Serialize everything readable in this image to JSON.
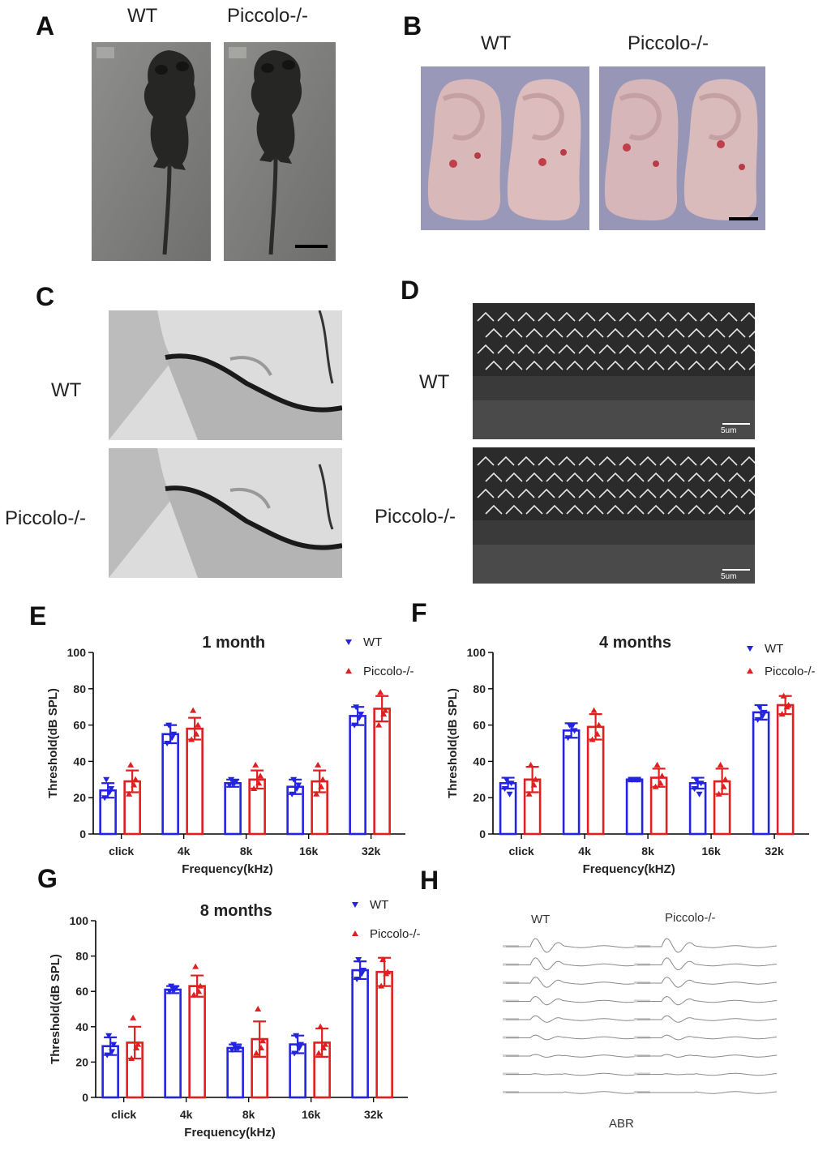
{
  "panels": {
    "A": {
      "letter": "A",
      "labels": [
        "WT",
        "Piccolo-/-"
      ]
    },
    "B": {
      "letter": "B",
      "labels": [
        "WT",
        "Piccolo-/-"
      ]
    },
    "C": {
      "letter": "C",
      "labels": [
        "WT",
        "Piccolo-/-"
      ]
    },
    "D": {
      "letter": "D",
      "labels": [
        "WT",
        "Piccolo-/-"
      ],
      "scale_label": "5um"
    },
    "E": {
      "letter": "E"
    },
    "F": {
      "letter": "F"
    },
    "G": {
      "letter": "G"
    },
    "H": {
      "letter": "H",
      "labels": [
        "WT",
        "Piccolo-/-"
      ],
      "xlabel": "ABR"
    }
  },
  "colors": {
    "wt": "#2323e0",
    "piccolo": "#e02020"
  },
  "chart_data": [
    {
      "panel": "E",
      "type": "bar",
      "title": "1 month",
      "xlabel": "Frequency(kHz)",
      "ylabel": "Threshold(dB SPL)",
      "ylim": [
        0,
        100
      ],
      "yticks": [
        0,
        20,
        40,
        60,
        80,
        100
      ],
      "categories": [
        "click",
        "4k",
        "8k",
        "16k",
        "32k"
      ],
      "series": [
        {
          "name": "WT",
          "values": [
            24,
            55,
            28,
            26,
            65
          ],
          "errors": [
            4,
            5,
            2,
            4,
            5
          ],
          "points": [
            [
              20,
              25,
              30,
              23
            ],
            [
              50,
              55,
              60,
              53
            ],
            [
              27,
              29,
              30,
              28
            ],
            [
              22,
              27,
              30,
              25
            ],
            [
              60,
              66,
              70,
              64
            ]
          ]
        },
        {
          "name": "Piccolo-/-",
          "values": [
            29,
            58,
            30,
            29,
            69
          ],
          "errors": [
            6,
            6,
            5,
            6,
            7
          ],
          "points": [
            [
              22,
              30,
              38,
              27
            ],
            [
              52,
              60,
              68,
              55
            ],
            [
              25,
              32,
              38,
              28
            ],
            [
              22,
              30,
              38,
              26
            ],
            [
              60,
              68,
              78,
              66
            ]
          ]
        }
      ],
      "legend": "top-right"
    },
    {
      "panel": "F",
      "type": "bar",
      "title": "4 months",
      "xlabel": "Frequency(kHZ)",
      "ylabel": "Threshold(dB SPL)",
      "ylim": [
        0,
        100
      ],
      "yticks": [
        0,
        20,
        40,
        60,
        80,
        100
      ],
      "categories": [
        "click",
        "4k",
        "8k",
        "16k",
        "32k"
      ],
      "series": [
        {
          "name": "WT",
          "values": [
            28,
            57,
            30,
            28,
            67
          ],
          "errors": [
            3,
            4,
            1,
            3,
            4
          ],
          "points": [
            [
              25,
              28,
              30,
              22
            ],
            [
              53,
              57,
              60,
              60
            ],
            [
              30,
              30,
              30,
              30
            ],
            [
              25,
              28,
              30,
              22
            ],
            [
              63,
              67,
              70,
              65
            ]
          ]
        },
        {
          "name": "Piccolo-/-",
          "values": [
            30,
            59,
            31,
            29,
            71
          ],
          "errors": [
            7,
            7,
            5,
            7,
            5
          ],
          "points": [
            [
              22,
              30,
              38,
              27
            ],
            [
              52,
              60,
              68,
              55
            ],
            [
              26,
              32,
              38,
              28
            ],
            [
              22,
              30,
              38,
              26
            ],
            [
              66,
              71,
              76,
              70
            ]
          ]
        }
      ],
      "legend": "top-right"
    },
    {
      "panel": "G",
      "type": "bar",
      "title": "8 months",
      "xlabel": "Frequency(kHz)",
      "ylabel": "Threshold(dB SPL)",
      "ylim": [
        0,
        100
      ],
      "yticks": [
        0,
        20,
        40,
        60,
        80,
        100
      ],
      "categories": [
        "click",
        "4k",
        "8k",
        "16k",
        "32k"
      ],
      "series": [
        {
          "name": "WT",
          "values": [
            29,
            61,
            28,
            30,
            72
          ],
          "errors": [
            5,
            2,
            2,
            5,
            5
          ],
          "points": [
            [
              24,
              30,
              35,
              26
            ],
            [
              60,
              62,
              63,
              61
            ],
            [
              27,
              28,
              30,
              28
            ],
            [
              25,
              30,
              35,
              28
            ],
            [
              67,
              72,
              78,
              70
            ]
          ]
        },
        {
          "name": "Piccolo-/-",
          "values": [
            31,
            63,
            33,
            31,
            71
          ],
          "errors": [
            9,
            6,
            10,
            8,
            8
          ],
          "points": [
            [
              22,
              30,
              45,
              28
            ],
            [
              58,
              63,
              74,
              60
            ],
            [
              25,
              32,
              50,
              28
            ],
            [
              25,
              30,
              40,
              28
            ],
            [
              63,
              71,
              78,
              70
            ]
          ]
        }
      ],
      "legend": "top-right"
    }
  ]
}
